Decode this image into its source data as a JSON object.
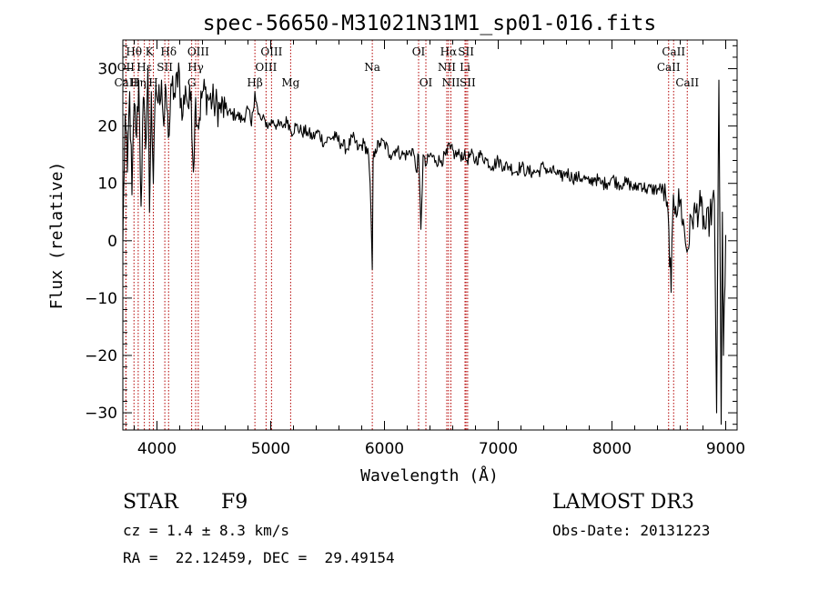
{
  "chart_data": {
    "type": "line",
    "title": "spec-56650-M31021N31M1_sp01-016.fits",
    "xlabel": "Wavelength (Å)",
    "ylabel": "Flux (relative)",
    "xlim": [
      3700,
      9100
    ],
    "ylim": [
      -33,
      35
    ],
    "xticks": [
      4000,
      5000,
      6000,
      7000,
      8000,
      9000
    ],
    "yticks": [
      -30,
      -20,
      -10,
      0,
      10,
      20,
      30
    ],
    "series": [
      {
        "name": "spectrum",
        "x": [
          3700,
          3720,
          3740,
          3760,
          3780,
          3800,
          3820,
          3840,
          3860,
          3880,
          3900,
          3920,
          3934,
          3950,
          3968,
          3990,
          4010,
          4040,
          4060,
          4080,
          4100,
          4130,
          4160,
          4190,
          4220,
          4250,
          4280,
          4300,
          4320,
          4340,
          4360,
          4400,
          4450,
          4500,
          4550,
          4600,
          4650,
          4700,
          4750,
          4800,
          4830,
          4861,
          4890,
          4920,
          4950,
          4980,
          5020,
          5060,
          5100,
          5150,
          5180,
          5220,
          5270,
          5320,
          5370,
          5420,
          5470,
          5520,
          5570,
          5620,
          5670,
          5720,
          5770,
          5820,
          5860,
          5880,
          5893,
          5900,
          5920,
          5960,
          6000,
          6050,
          6100,
          6150,
          6200,
          6250,
          6280,
          6300,
          6320,
          6340,
          6360,
          6400,
          6450,
          6500,
          6550,
          6563,
          6580,
          6620,
          6660,
          6700,
          6720,
          6760,
          6800,
          6850,
          6900,
          6950,
          7000,
          7050,
          7100,
          7150,
          7200,
          7250,
          7300,
          7350,
          7400,
          7450,
          7500,
          7550,
          7600,
          7650,
          7700,
          7750,
          7800,
          7850,
          7900,
          7950,
          8000,
          8050,
          8100,
          8150,
          8200,
          8250,
          8300,
          8350,
          8400,
          8450,
          8480,
          8500,
          8520,
          8540,
          8560,
          8600,
          8640,
          8660,
          8700,
          8740,
          8780,
          8820,
          8860,
          8900,
          8920,
          8940,
          8960,
          8970,
          8980,
          9000
        ],
        "y": [
          0,
          22,
          12,
          26,
          8,
          24,
          18,
          28,
          6,
          25,
          16,
          30,
          5,
          26,
          10,
          27,
          24,
          28,
          20,
          26,
          18,
          27,
          25,
          31,
          21,
          27,
          23,
          26,
          12,
          25,
          20,
          26,
          25,
          24,
          23,
          23,
          22,
          22,
          21,
          23,
          20,
          26,
          22,
          21,
          21,
          20,
          21,
          20,
          20,
          21,
          19,
          20,
          19,
          19,
          18,
          19,
          17,
          18,
          18,
          17,
          16,
          18,
          16,
          17,
          15,
          6,
          -5,
          14,
          16,
          17,
          17,
          15,
          16,
          15,
          15,
          16,
          12,
          15,
          2,
          15,
          13,
          15,
          14,
          14,
          15,
          17,
          16,
          15,
          15,
          15,
          14,
          15,
          14,
          15,
          14,
          13,
          14,
          13,
          13,
          12,
          13,
          12,
          12,
          12,
          13,
          12,
          12,
          11,
          12,
          11,
          11,
          11,
          10,
          11,
          10,
          10,
          11,
          10,
          10,
          10,
          9,
          10,
          9,
          9,
          9,
          9,
          6,
          2,
          -9,
          8,
          6,
          7,
          1,
          -2,
          4,
          5,
          6,
          2,
          4,
          7,
          -30,
          28,
          -32,
          5,
          -20,
          1
        ]
      }
    ],
    "spectral_lines": [
      {
        "name": "Hθ",
        "x": 3798,
        "row": 0
      },
      {
        "name": "OII",
        "x": 3727,
        "row": 1
      },
      {
        "name": "CaII",
        "x": 3727,
        "row": 2
      },
      {
        "name": "Hη",
        "x": 3835,
        "row": 2
      },
      {
        "name": "Hε",
        "x": 3889,
        "row": 1
      },
      {
        "name": "K",
        "x": 3934,
        "row": 0
      },
      {
        "name": "H",
        "x": 3968,
        "row": 2
      },
      {
        "name": "SII",
        "x": 4069,
        "row": 1
      },
      {
        "name": "Hδ",
        "x": 4102,
        "row": 0
      },
      {
        "name": "OIII",
        "x": 4363,
        "row": 0
      },
      {
        "name": "Hγ",
        "x": 4340,
        "row": 1
      },
      {
        "name": "G",
        "x": 4305,
        "row": 2
      },
      {
        "name": "Hβ",
        "x": 4861,
        "row": 2
      },
      {
        "name": "OIII",
        "x": 4959,
        "row": 1
      },
      {
        "name": "OIII",
        "x": 5007,
        "row": 0
      },
      {
        "name": "Mg",
        "x": 5175,
        "row": 2
      },
      {
        "name": "Na",
        "x": 5893,
        "row": 1
      },
      {
        "name": "OI",
        "x": 6300,
        "row": 0
      },
      {
        "name": "OI",
        "x": 6364,
        "row": 2
      },
      {
        "name": "Hα",
        "x": 6563,
        "row": 0
      },
      {
        "name": "NII",
        "x": 6548,
        "row": 1
      },
      {
        "name": "NII",
        "x": 6584,
        "row": 2
      },
      {
        "name": "SII",
        "x": 6717,
        "row": 0
      },
      {
        "name": "Li",
        "x": 6708,
        "row": 1
      },
      {
        "name": "SII",
        "x": 6731,
        "row": 2
      },
      {
        "name": "CaII",
        "x": 8542,
        "row": 0
      },
      {
        "name": "CaII",
        "x": 8498,
        "row": 1
      },
      {
        "name": "CaII",
        "x": 8662,
        "row": 2
      }
    ]
  },
  "info": {
    "object_class": "STAR",
    "subclass": "F9",
    "cz": "cz = 1.4 ± 8.3 km/s",
    "coords": "RA =  22.12459, DEC =  29.49154",
    "survey": "LAMOST DR3",
    "obs_date": "Obs-Date: 20131223"
  }
}
